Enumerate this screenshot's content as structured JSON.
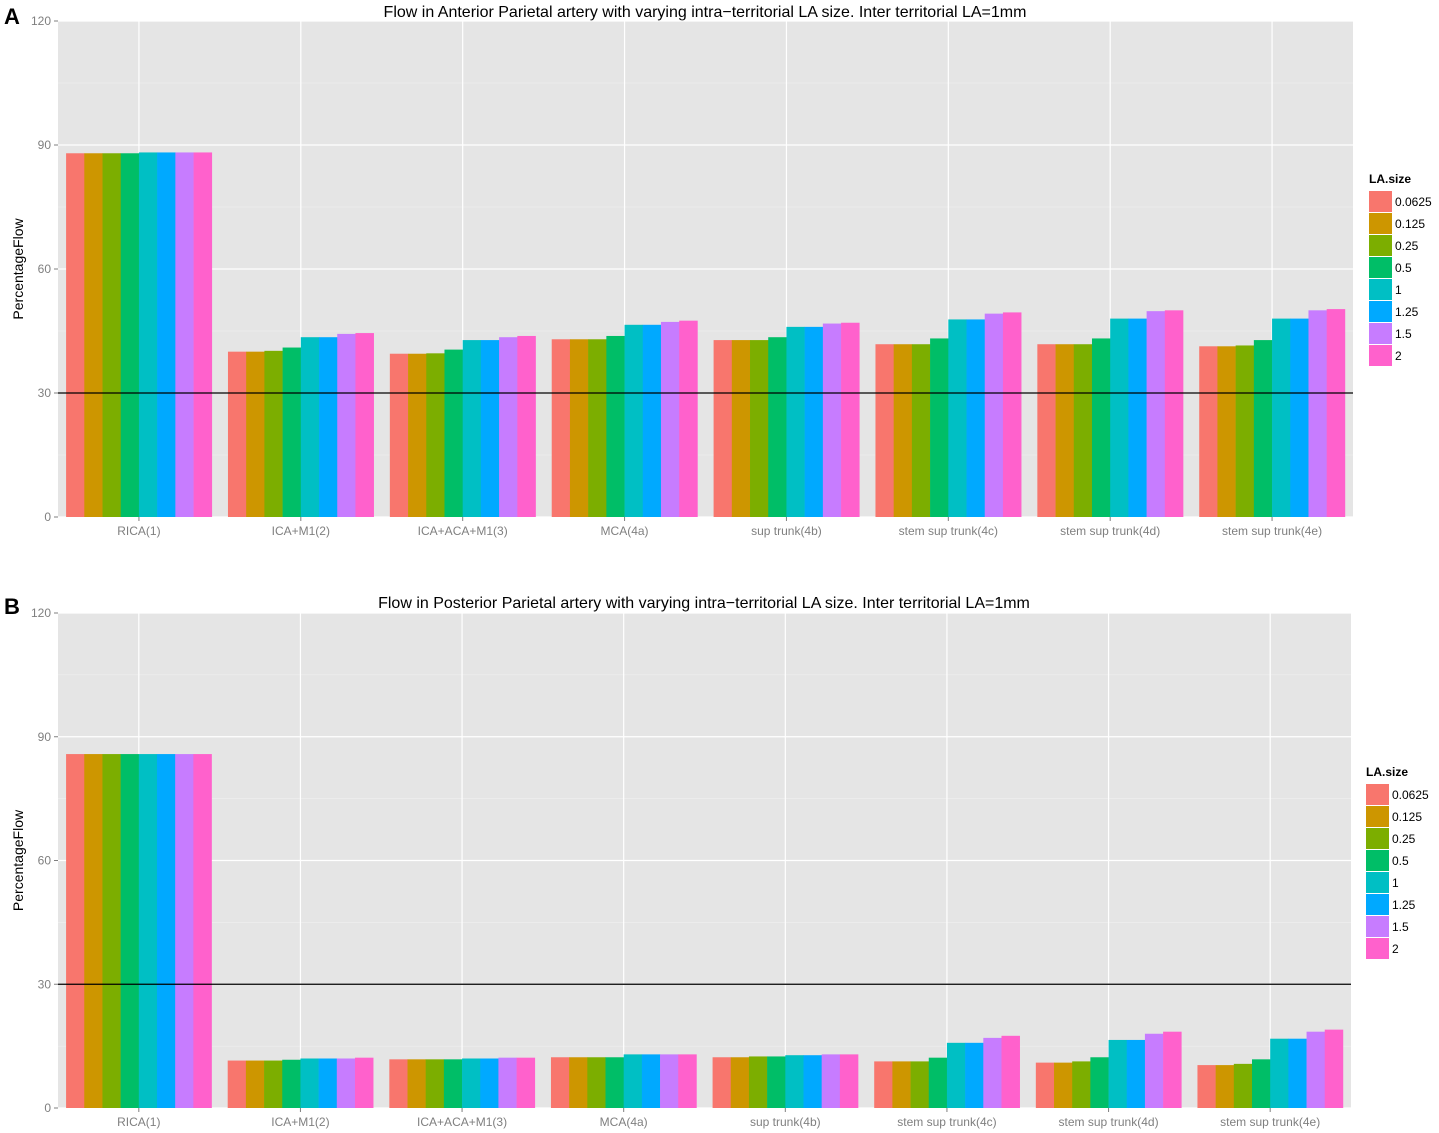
{
  "panels": [
    {
      "letter": "A",
      "chart_data": {
        "type": "bar",
        "title": "Flow in Anterior Parietal artery with varying intra−territorial LA size. Inter territorial LA=1mm",
        "xlabel": "",
        "ylabel": "PercentageFlow",
        "ylim": [
          0,
          120
        ],
        "yticks": [
          "0",
          "30",
          "60",
          "90",
          "120"
        ],
        "reference_line": 30,
        "grid": true,
        "legend_title": "LA.size",
        "legend_position": "right",
        "categories": [
          "RICA(1)",
          "ICA+M1(2)",
          "ICA+ACA+M1(3)",
          "MCA(4a)",
          "sup trunk(4b)",
          "stem sup trunk(4c)",
          "stem sup trunk(4d)",
          "stem sup trunk(4e)"
        ],
        "series": [
          {
            "name": "0.0625",
            "color": "#F8766D",
            "values": [
              88.0,
              40.0,
              39.5,
              43.0,
              42.8,
              41.8,
              41.8,
              41.3
            ]
          },
          {
            "name": "0.125",
            "color": "#CD9600",
            "values": [
              88.0,
              40.0,
              39.5,
              43.0,
              42.8,
              41.8,
              41.8,
              41.3
            ]
          },
          {
            "name": "0.25",
            "color": "#7CAE00",
            "values": [
              88.0,
              40.2,
              39.6,
              43.0,
              42.8,
              41.8,
              41.8,
              41.5
            ]
          },
          {
            "name": "0.5",
            "color": "#00BE67",
            "values": [
              88.0,
              41.0,
              40.5,
              43.8,
              43.5,
              43.2,
              43.2,
              42.8
            ]
          },
          {
            "name": "1",
            "color": "#00BFC4",
            "values": [
              88.2,
              43.5,
              42.8,
              46.5,
              46.0,
              47.8,
              48.0,
              48.0
            ]
          },
          {
            "name": "1.25",
            "color": "#00A9FF",
            "values": [
              88.2,
              43.5,
              42.8,
              46.5,
              46.0,
              47.8,
              48.0,
              48.0
            ]
          },
          {
            "name": "1.5",
            "color": "#C77CFF",
            "values": [
              88.2,
              44.3,
              43.5,
              47.2,
              46.8,
              49.2,
              49.8,
              50.0
            ]
          },
          {
            "name": "2",
            "color": "#FF61CC",
            "values": [
              88.2,
              44.5,
              43.8,
              47.5,
              47.0,
              49.5,
              50.0,
              50.3
            ]
          }
        ]
      }
    },
    {
      "letter": "B",
      "chart_data": {
        "type": "bar",
        "title": "Flow in Posterior Parietal artery with varying intra−territorial LA size. Inter territorial LA=1mm",
        "xlabel": "",
        "ylabel": "PercentageFlow",
        "ylim": [
          0,
          120
        ],
        "yticks": [
          "0",
          "30",
          "60",
          "90",
          "120"
        ],
        "reference_line": 30,
        "grid": true,
        "legend_title": "LA.size",
        "legend_position": "right",
        "categories": [
          "RICA(1)",
          "ICA+M1(2)",
          "ICA+ACA+M1(3)",
          "MCA(4a)",
          "sup trunk(4b)",
          "stem sup trunk(4c)",
          "stem sup trunk(4d)",
          "stem sup trunk(4e)"
        ],
        "series": [
          {
            "name": "0.0625",
            "color": "#F8766D",
            "values": [
              85.8,
              11.5,
              11.8,
              12.3,
              12.3,
              11.3,
              11.0,
              10.4
            ]
          },
          {
            "name": "0.125",
            "color": "#CD9600",
            "values": [
              85.8,
              11.5,
              11.8,
              12.3,
              12.3,
              11.3,
              11.0,
              10.4
            ]
          },
          {
            "name": "0.25",
            "color": "#7CAE00",
            "values": [
              85.8,
              11.5,
              11.8,
              12.3,
              12.5,
              11.3,
              11.3,
              10.7
            ]
          },
          {
            "name": "0.5",
            "color": "#00BE67",
            "values": [
              85.8,
              11.7,
              11.8,
              12.3,
              12.5,
              12.2,
              12.3,
              11.8
            ]
          },
          {
            "name": "1",
            "color": "#00BFC4",
            "values": [
              85.8,
              12.0,
              12.0,
              13.0,
              12.8,
              15.8,
              16.5,
              16.8
            ]
          },
          {
            "name": "1.25",
            "color": "#00A9FF",
            "values": [
              85.8,
              12.0,
              12.0,
              13.0,
              12.8,
              15.8,
              16.5,
              16.8
            ]
          },
          {
            "name": "1.5",
            "color": "#C77CFF",
            "values": [
              85.8,
              12.0,
              12.2,
              13.0,
              13.0,
              17.0,
              18.0,
              18.5
            ]
          },
          {
            "name": "2",
            "color": "#FF61CC",
            "values": [
              85.8,
              12.2,
              12.2,
              13.0,
              13.0,
              17.5,
              18.5,
              19.0
            ]
          }
        ]
      }
    }
  ]
}
